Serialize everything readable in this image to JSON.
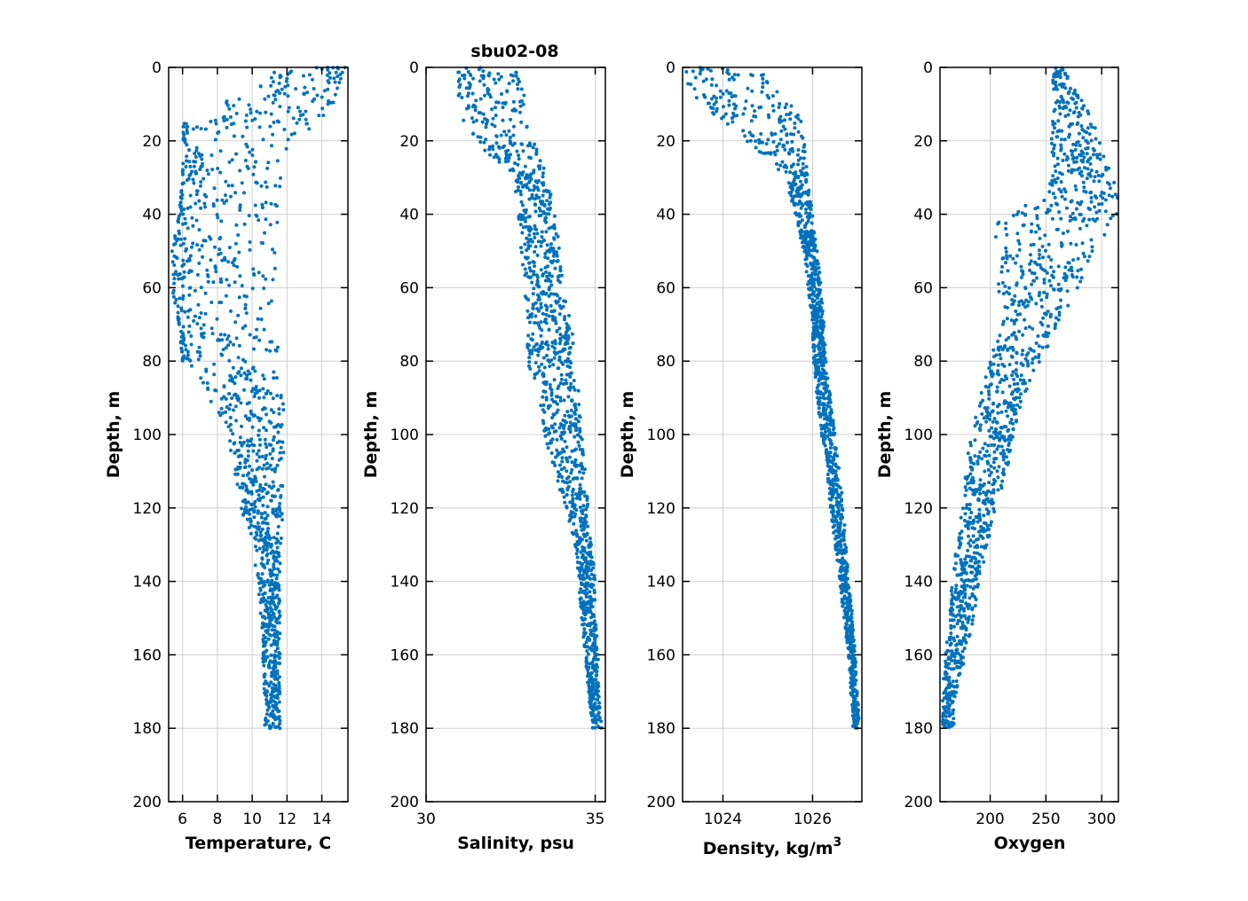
{
  "figure_title": "sbu02-08",
  "accent_color": "#0072BD",
  "chart_data": [
    {
      "type": "scatter",
      "xlabel": "Temperature, C",
      "ylabel": "Depth, m",
      "xlim": [
        5.2,
        15.5
      ],
      "ylim": [
        0,
        200
      ],
      "y_reversed": true,
      "grid": true,
      "xticks": [
        6,
        8,
        10,
        12,
        14
      ],
      "yticks": [
        0,
        20,
        40,
        60,
        80,
        100,
        120,
        140,
        160,
        180,
        200
      ],
      "profile": {
        "depth": [
          0,
          5,
          10,
          15,
          20,
          25,
          30,
          40,
          50,
          60,
          70,
          80,
          90,
          100,
          110,
          120,
          130,
          140,
          150,
          160,
          170,
          180
        ],
        "min": [
          11.5,
          10.5,
          8.0,
          6.0,
          6.0,
          6.0,
          6.0,
          5.8,
          5.4,
          5.4,
          5.8,
          6.0,
          7.5,
          8.5,
          9.0,
          9.3,
          10.0,
          10.3,
          10.5,
          10.6,
          10.7,
          10.7
        ],
        "max": [
          15.5,
          15.0,
          14.8,
          14.0,
          13.0,
          12.2,
          11.8,
          11.6,
          11.7,
          11.7,
          11.6,
          11.6,
          11.8,
          11.8,
          11.8,
          11.7,
          11.8,
          11.6,
          11.6,
          11.6,
          11.6,
          11.6
        ]
      }
    },
    {
      "type": "scatter",
      "xlabel": "Salinity, psu",
      "ylabel": "Depth, m",
      "xlim": [
        30,
        35.3
      ],
      "ylim": [
        0,
        200
      ],
      "y_reversed": true,
      "grid": true,
      "xticks": [
        30,
        35
      ],
      "yticks": [
        0,
        20,
        40,
        60,
        80,
        100,
        120,
        140,
        160,
        180,
        200
      ],
      "profile": {
        "depth": [
          0,
          5,
          10,
          15,
          20,
          25,
          30,
          40,
          50,
          60,
          70,
          80,
          90,
          100,
          110,
          120,
          130,
          140,
          150,
          160,
          170,
          180
        ],
        "min": [
          30.9,
          30.9,
          31.0,
          31.1,
          31.4,
          32.0,
          32.6,
          32.7,
          32.8,
          32.9,
          33.0,
          33.0,
          33.3,
          33.5,
          33.8,
          34.1,
          34.4,
          34.5,
          34.6,
          34.7,
          34.8,
          34.9
        ],
        "max": [
          32.9,
          32.9,
          32.9,
          33.0,
          33.2,
          33.4,
          33.6,
          33.8,
          34.0,
          34.1,
          34.3,
          34.4,
          34.6,
          34.6,
          34.7,
          34.8,
          34.9,
          35.0,
          35.0,
          35.1,
          35.1,
          35.2
        ]
      }
    },
    {
      "type": "scatter",
      "xlabel": "Density, kg/m",
      "xlabel_superscript": "3",
      "ylabel": "Depth, m",
      "xlim": [
        1023.1,
        1027.1
      ],
      "ylim": [
        0,
        200
      ],
      "y_reversed": true,
      "grid": true,
      "xticks": [
        1024,
        1026
      ],
      "yticks": [
        0,
        20,
        40,
        60,
        80,
        100,
        120,
        140,
        160,
        180,
        200
      ],
      "profile": {
        "depth": [
          0,
          5,
          10,
          15,
          20,
          25,
          30,
          40,
          50,
          60,
          70,
          80,
          90,
          100,
          110,
          120,
          130,
          140,
          150,
          160,
          170,
          180
        ],
        "min": [
          1023.1,
          1023.2,
          1023.5,
          1024.0,
          1024.5,
          1025.0,
          1025.4,
          1025.6,
          1025.8,
          1025.9,
          1026.0,
          1026.0,
          1026.1,
          1026.2,
          1026.3,
          1026.4,
          1026.5,
          1026.6,
          1026.7,
          1026.8,
          1026.85,
          1026.9
        ],
        "max": [
          1024.8,
          1025.1,
          1025.5,
          1025.8,
          1025.85,
          1025.85,
          1025.9,
          1026.0,
          1026.1,
          1026.2,
          1026.25,
          1026.3,
          1026.4,
          1026.5,
          1026.6,
          1026.7,
          1026.75,
          1026.8,
          1026.9,
          1026.95,
          1027.0,
          1027.05
        ]
      }
    },
    {
      "type": "scatter",
      "xlabel": "Oxygen",
      "ylabel": "Depth, m",
      "xlim": [
        155,
        315
      ],
      "ylim": [
        0,
        200
      ],
      "y_reversed": true,
      "grid": true,
      "xticks": [
        200,
        250,
        300
      ],
      "yticks": [
        0,
        20,
        40,
        60,
        80,
        100,
        120,
        140,
        160,
        180,
        200
      ],
      "profile": {
        "depth": [
          0,
          5,
          10,
          15,
          20,
          25,
          30,
          35,
          40,
          45,
          50,
          55,
          60,
          70,
          80,
          90,
          100,
          110,
          120,
          130,
          140,
          150,
          160,
          170,
          180
        ],
        "min": [
          258,
          255,
          255,
          255,
          255,
          256,
          255,
          250,
          208,
          205,
          205,
          205,
          207,
          208,
          200,
          190,
          182,
          178,
          175,
          170,
          166,
          163,
          160,
          157,
          157
        ],
        "max": [
          265,
          275,
          285,
          292,
          300,
          305,
          310,
          315,
          315,
          305,
          298,
          290,
          280,
          262,
          245,
          230,
          222,
          215,
          205,
          198,
          190,
          185,
          178,
          170,
          167
        ]
      }
    }
  ]
}
